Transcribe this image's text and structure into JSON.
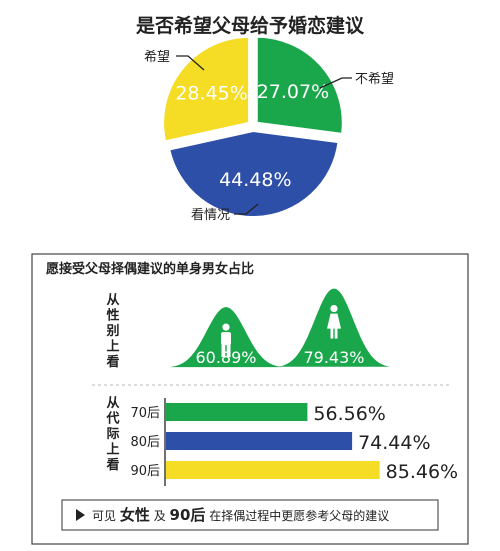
{
  "chart_data": [
    {
      "type": "pie",
      "title": "是否希望父母给予婚恋建议",
      "slices": [
        {
          "label": "不希望",
          "value": 27.07,
          "value_label": "27.07%",
          "color": "#1aa64a"
        },
        {
          "label": "看情况",
          "value": 44.48,
          "value_label": "44.48%",
          "color": "#2e4fa8"
        },
        {
          "label": "希望",
          "value": 28.45,
          "value_label": "28.45%",
          "color": "#f5dc25"
        }
      ]
    },
    {
      "type": "bar",
      "title": "愿接受父母择偶建议的单身男女占比",
      "groups": [
        {
          "label": "从性别上看",
          "categories": [
            "male",
            "female"
          ],
          "values": [
            60.89,
            79.43
          ],
          "value_labels": [
            "60.89%",
            "79.43%"
          ],
          "color": "#1aa64a"
        },
        {
          "label": "从代际上看",
          "categories": [
            "70后",
            "80后",
            "90后"
          ],
          "values": [
            56.56,
            74.44,
            85.46
          ],
          "value_labels": [
            "56.56%",
            "74.44%",
            "85.46%"
          ],
          "colors": [
            "#1aa64a",
            "#2e4fa8",
            "#f5dc25"
          ]
        }
      ]
    }
  ],
  "icons": {
    "male": "male-figure-icon",
    "female": "female-figure-icon",
    "arrow": "triangle-right-icon"
  },
  "footer": {
    "part1": "可见",
    "part2": "女性",
    "part3": "及",
    "part4": "90后",
    "part5": "在择偶过程中更愿参考父母的建议"
  }
}
